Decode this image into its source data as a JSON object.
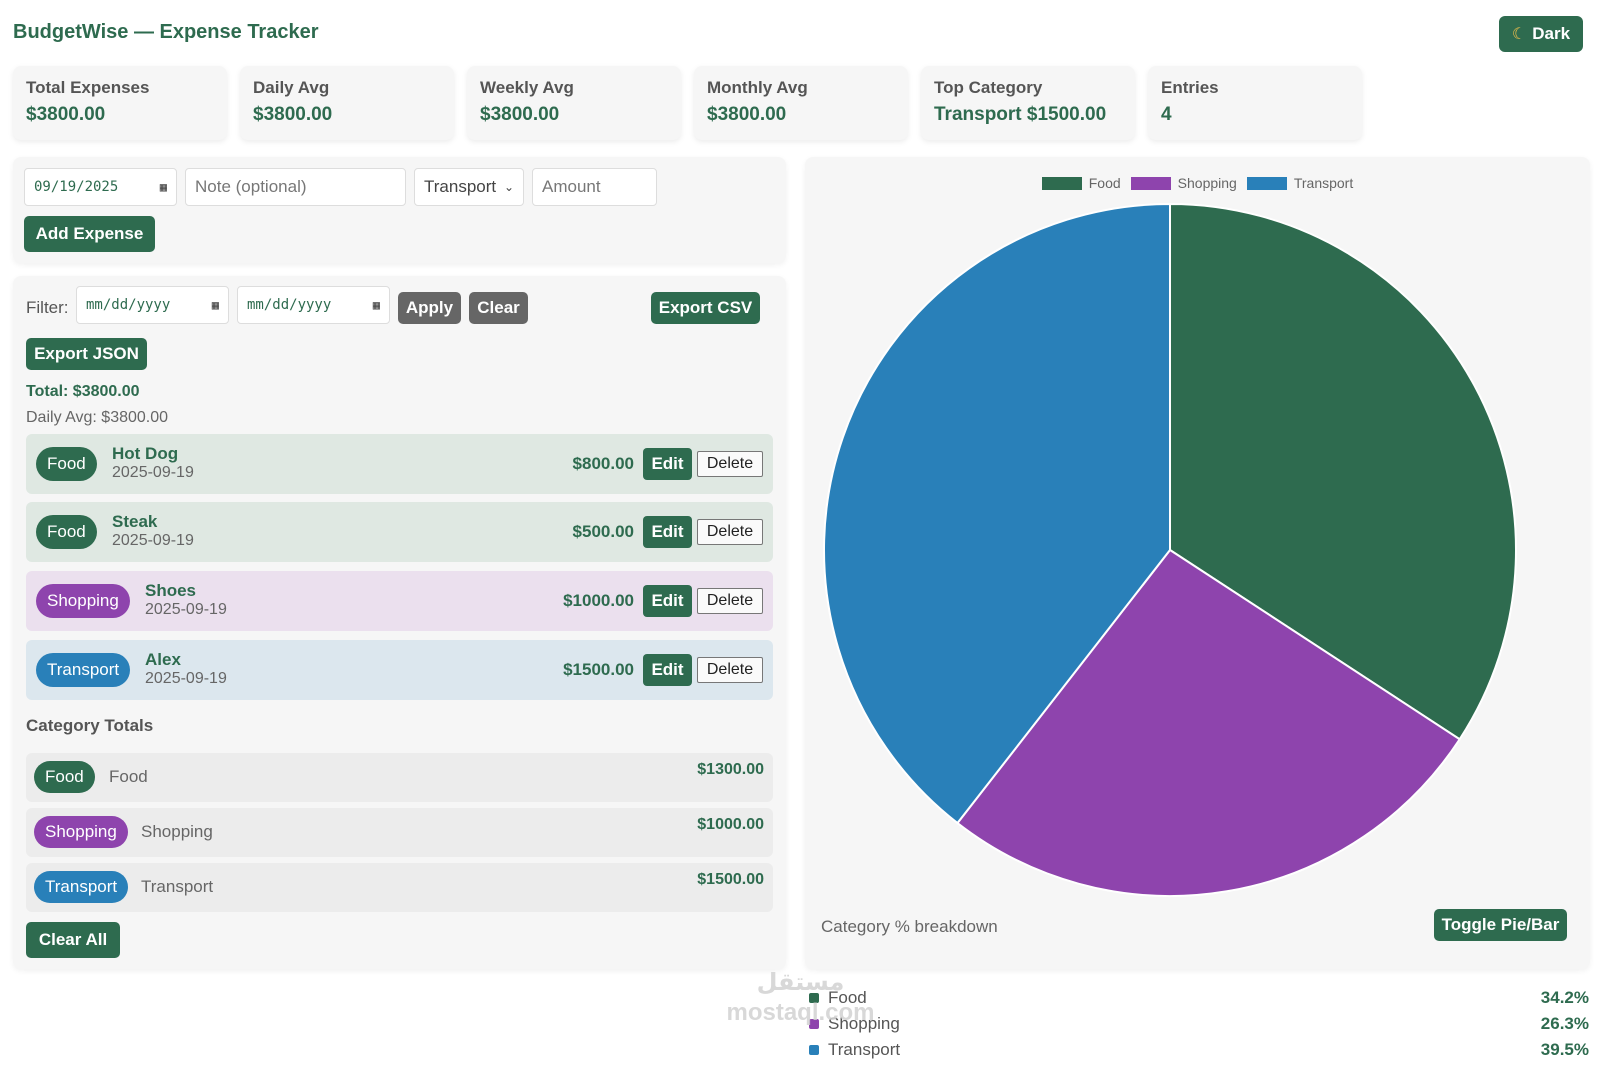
{
  "app": {
    "title": "BudgetWise — Expense Tracker",
    "theme_toggle_label": "Dark"
  },
  "stats": [
    {
      "label": "Total Expenses",
      "value": "$3800.00"
    },
    {
      "label": "Daily Avg",
      "value": "$3800.00"
    },
    {
      "label": "Weekly Avg",
      "value": "$3800.00"
    },
    {
      "label": "Monthly Avg",
      "value": "$3800.00"
    },
    {
      "label": "Top Category",
      "value": "Transport $1500.00"
    },
    {
      "label": "Entries",
      "value": "4"
    }
  ],
  "form": {
    "date_value": "09/19/2025",
    "note_placeholder": "Note (optional)",
    "category_selected": "Transport",
    "amount_placeholder": "Amount",
    "add_label": "Add Expense"
  },
  "filter": {
    "label": "Filter:",
    "from_placeholder": "mm/dd/yyyy",
    "to_placeholder": "mm/dd/yyyy",
    "apply_label": "Apply",
    "clear_label": "Clear",
    "export_csv_label": "Export CSV",
    "export_json_label": "Export JSON"
  },
  "summary": {
    "total": "Total: $3800.00",
    "daily_avg": "Daily Avg: $3800.00"
  },
  "entries": [
    {
      "category": "Food",
      "name": "Hot Dog",
      "date": "2025-09-19",
      "amount": "$800.00"
    },
    {
      "category": "Food",
      "name": "Steak",
      "date": "2025-09-19",
      "amount": "$500.00"
    },
    {
      "category": "Shopping",
      "name": "Shoes",
      "date": "2025-09-19",
      "amount": "$1000.00"
    },
    {
      "category": "Transport",
      "name": "Alex",
      "date": "2025-09-19",
      "amount": "$1500.00"
    }
  ],
  "entry_actions": {
    "edit_label": "Edit",
    "delete_label": "Delete"
  },
  "category_totals": {
    "heading": "Category Totals",
    "rows": [
      {
        "badge": "Food",
        "name": "Food",
        "amount": "$1300.00"
      },
      {
        "badge": "Shopping",
        "name": "Shopping",
        "amount": "$1000.00"
      },
      {
        "badge": "Transport",
        "name": "Transport",
        "amount": "$1500.00"
      }
    ],
    "clear_all_label": "Clear All"
  },
  "colors": {
    "food": "#2e6b4f",
    "shopping": "#8e44ad",
    "transport": "#2980b9"
  },
  "chart": {
    "caption": "Category % breakdown",
    "toggle_label": "Toggle Pie/Bar"
  },
  "chart_data": {
    "type": "pie",
    "categories": [
      "Food",
      "Shopping",
      "Transport"
    ],
    "values": [
      1300,
      1000,
      1500
    ],
    "colors": [
      "#2e6b4f",
      "#8e44ad",
      "#2980b9"
    ],
    "legend_placement": "top"
  },
  "percentages": [
    {
      "label": "Food",
      "value": "34.2%"
    },
    {
      "label": "Shopping",
      "value": "26.3%"
    },
    {
      "label": "Transport",
      "value": "39.5%"
    }
  ],
  "watermark": {
    "text_ar": "مستقل",
    "text_en": "mostaql.com"
  }
}
